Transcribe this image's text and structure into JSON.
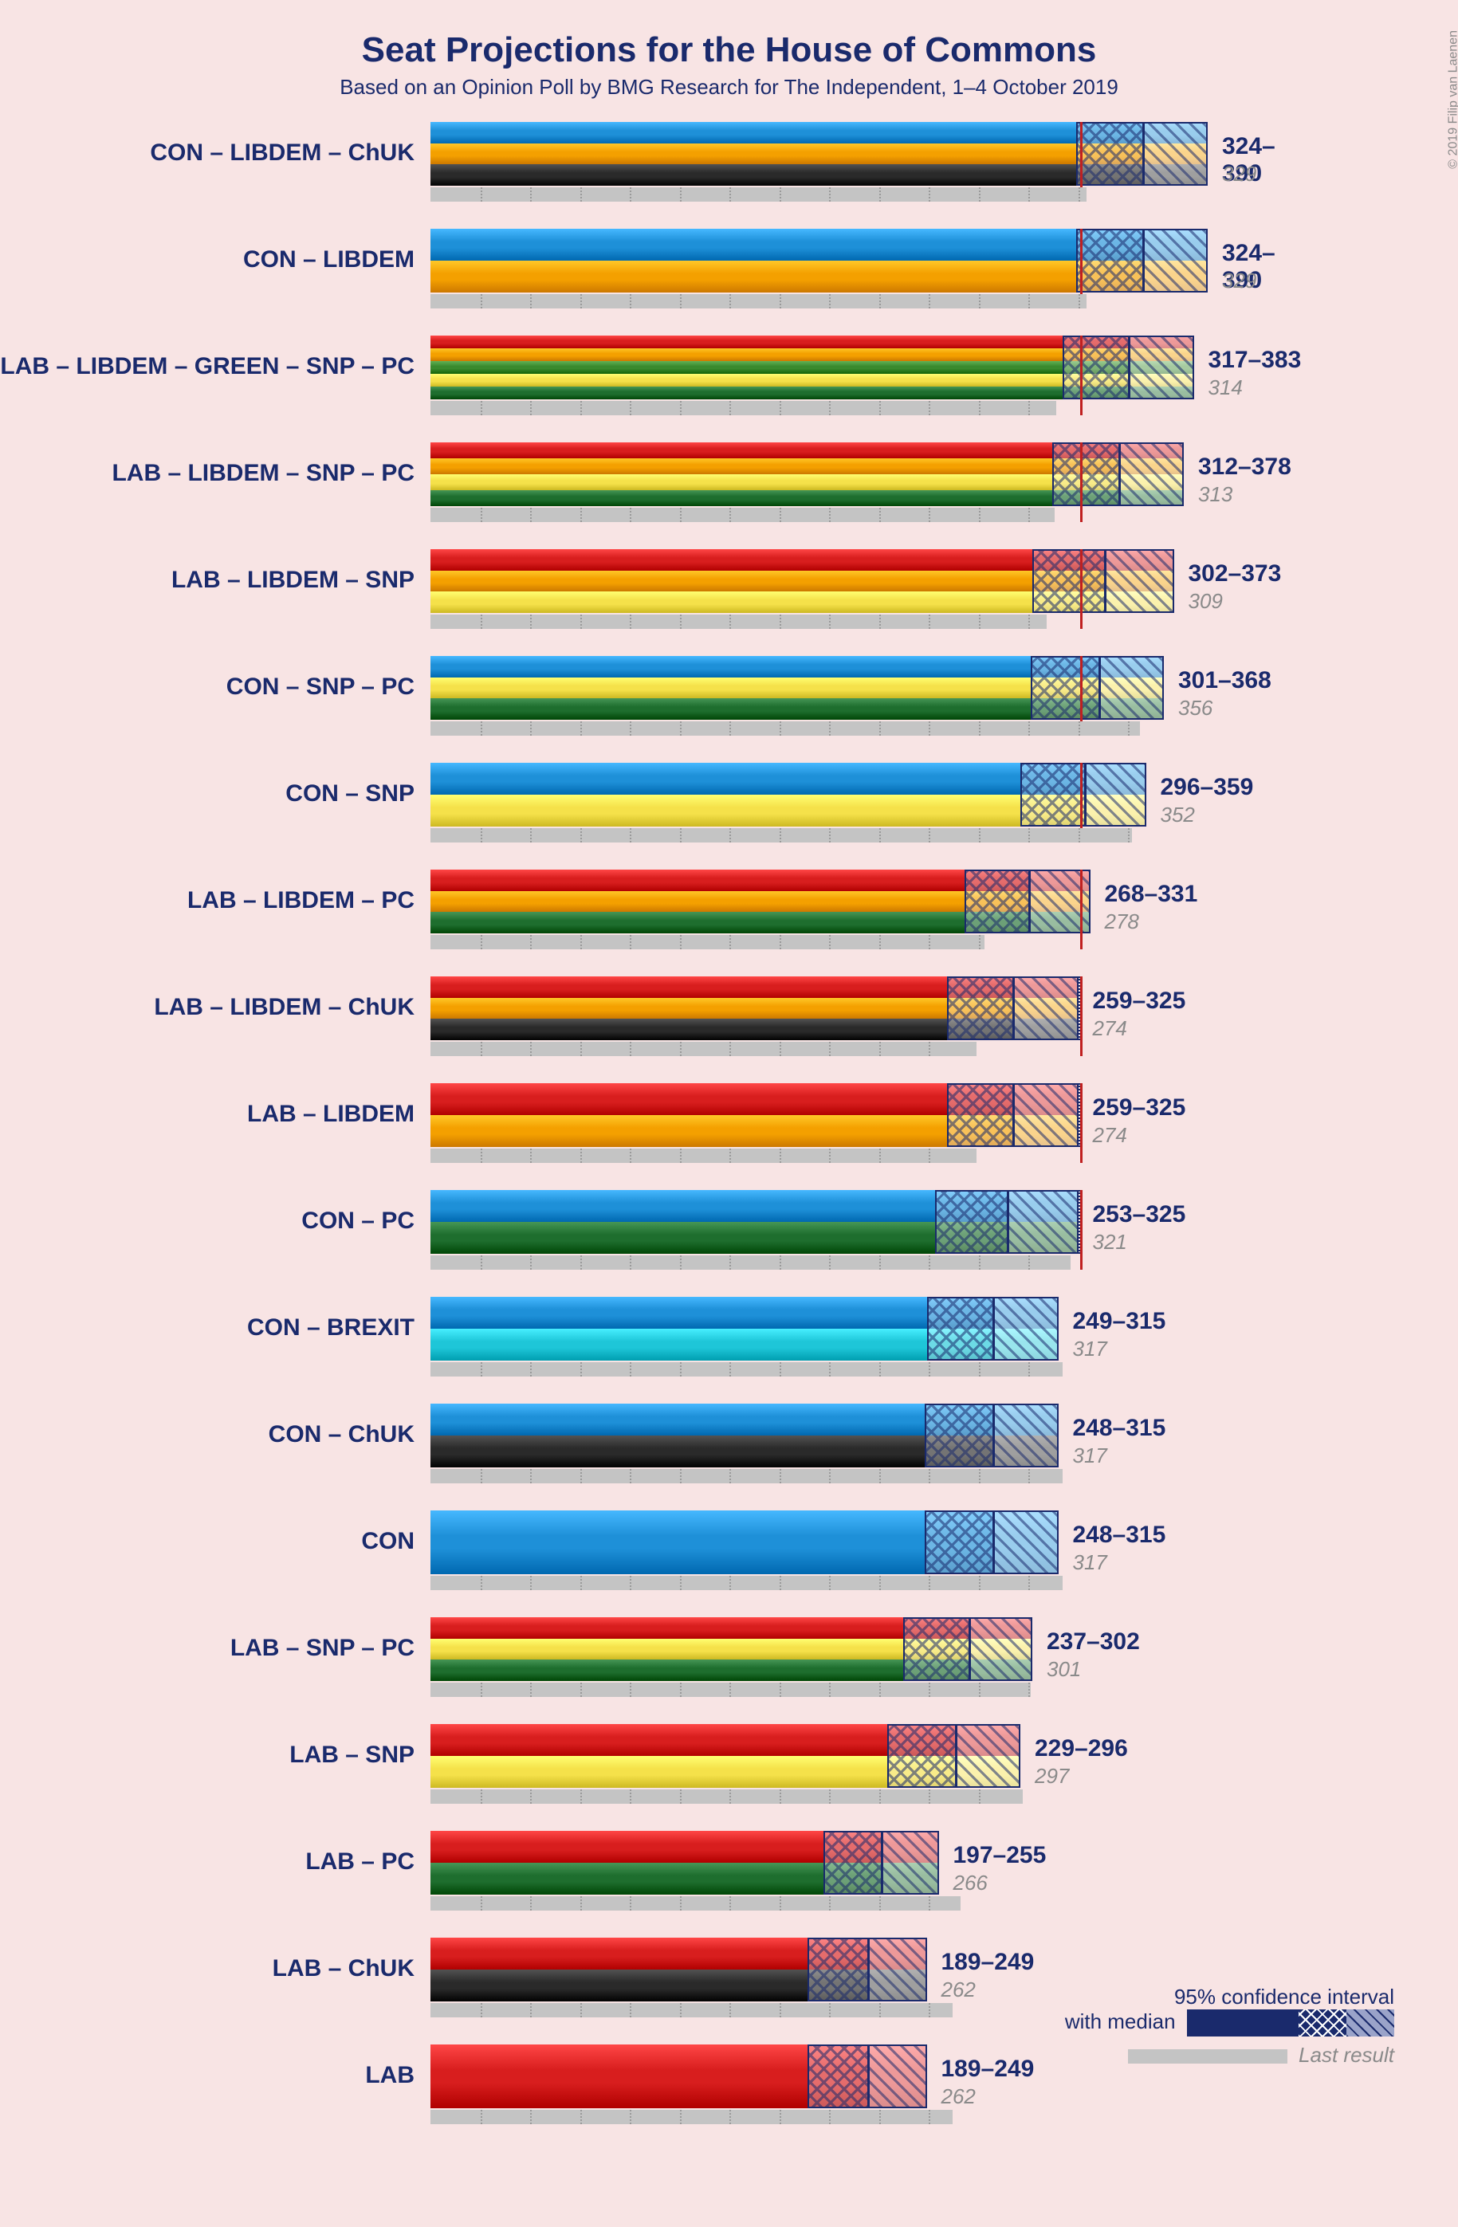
{
  "title": "Seat Projections for the House of Commons",
  "subtitle": "Based on an Opinion Poll by BMG Research for The Independent, 1–4 October 2019",
  "copyright": "© 2019 Filip van Laenen",
  "chart": {
    "xmax": 400,
    "tick_step": 25,
    "majority": 326,
    "grid_color_main": "#1a2a6c",
    "grid_color_last": "#9a9a9a",
    "background": "#f8e4e4",
    "bar_bg": "#ffffff",
    "last_bar_color": "#c4c4c4",
    "text_color": "#1a2a6c",
    "muted_text": "#8a8a8a",
    "party_colors": {
      "CON": "#1e90d8",
      "LAB": "#d81e1e",
      "LIBDEM": "#f4a000",
      "SNP": "#f5e14a",
      "GREEN": "#3a8a2e",
      "PC": "#1e6e2e",
      "BREXIT": "#1ec6d8",
      "ChUK": "#2a2a2a"
    },
    "rows": [
      {
        "label": "CON – LIBDEM – ChUK",
        "parties": [
          "CON",
          "LIBDEM",
          "ChUK"
        ],
        "low": 324,
        "high": 390,
        "median": 357,
        "last": 329
      },
      {
        "label": "CON – LIBDEM",
        "parties": [
          "CON",
          "LIBDEM"
        ],
        "low": 324,
        "high": 390,
        "median": 357,
        "last": 329
      },
      {
        "label": "LAB – LIBDEM – GREEN – SNP – PC",
        "parties": [
          "LAB",
          "LIBDEM",
          "GREEN",
          "SNP",
          "PC"
        ],
        "low": 317,
        "high": 383,
        "median": 350,
        "last": 314
      },
      {
        "label": "LAB – LIBDEM – SNP – PC",
        "parties": [
          "LAB",
          "LIBDEM",
          "SNP",
          "PC"
        ],
        "low": 312,
        "high": 378,
        "median": 345,
        "last": 313
      },
      {
        "label": "LAB – LIBDEM – SNP",
        "parties": [
          "LAB",
          "LIBDEM",
          "SNP"
        ],
        "low": 302,
        "high": 373,
        "median": 338,
        "last": 309
      },
      {
        "label": "CON – SNP – PC",
        "parties": [
          "CON",
          "SNP",
          "PC"
        ],
        "low": 301,
        "high": 368,
        "median": 335,
        "last": 356
      },
      {
        "label": "CON – SNP",
        "parties": [
          "CON",
          "SNP"
        ],
        "low": 296,
        "high": 359,
        "median": 328,
        "last": 352
      },
      {
        "label": "LAB – LIBDEM – PC",
        "parties": [
          "LAB",
          "LIBDEM",
          "PC"
        ],
        "low": 268,
        "high": 331,
        "median": 300,
        "last": 278
      },
      {
        "label": "LAB – LIBDEM – ChUK",
        "parties": [
          "LAB",
          "LIBDEM",
          "ChUK"
        ],
        "low": 259,
        "high": 325,
        "median": 292,
        "last": 274
      },
      {
        "label": "LAB – LIBDEM",
        "parties": [
          "LAB",
          "LIBDEM"
        ],
        "low": 259,
        "high": 325,
        "median": 292,
        "last": 274
      },
      {
        "label": "CON – PC",
        "parties": [
          "CON",
          "PC"
        ],
        "low": 253,
        "high": 325,
        "median": 289,
        "last": 321
      },
      {
        "label": "CON – BREXIT",
        "parties": [
          "CON",
          "BREXIT"
        ],
        "low": 249,
        "high": 315,
        "median": 282,
        "last": 317
      },
      {
        "label": "CON – ChUK",
        "parties": [
          "CON",
          "ChUK"
        ],
        "low": 248,
        "high": 315,
        "median": 282,
        "last": 317
      },
      {
        "label": "CON",
        "parties": [
          "CON"
        ],
        "low": 248,
        "high": 315,
        "median": 282,
        "last": 317
      },
      {
        "label": "LAB – SNP – PC",
        "parties": [
          "LAB",
          "SNP",
          "PC"
        ],
        "low": 237,
        "high": 302,
        "median": 270,
        "last": 301
      },
      {
        "label": "LAB – SNP",
        "parties": [
          "LAB",
          "SNP"
        ],
        "low": 229,
        "high": 296,
        "median": 263,
        "last": 297
      },
      {
        "label": "LAB – PC",
        "parties": [
          "LAB",
          "PC"
        ],
        "low": 197,
        "high": 255,
        "median": 226,
        "last": 266
      },
      {
        "label": "LAB – ChUK",
        "parties": [
          "LAB",
          "ChUK"
        ],
        "low": 189,
        "high": 249,
        "median": 219,
        "last": 262
      },
      {
        "label": "LAB",
        "parties": [
          "LAB"
        ],
        "low": 189,
        "high": 249,
        "median": 219,
        "last": 262
      }
    ]
  },
  "legend": {
    "line1": "95% confidence interval",
    "line2": "with median",
    "last_label": "Last result"
  }
}
